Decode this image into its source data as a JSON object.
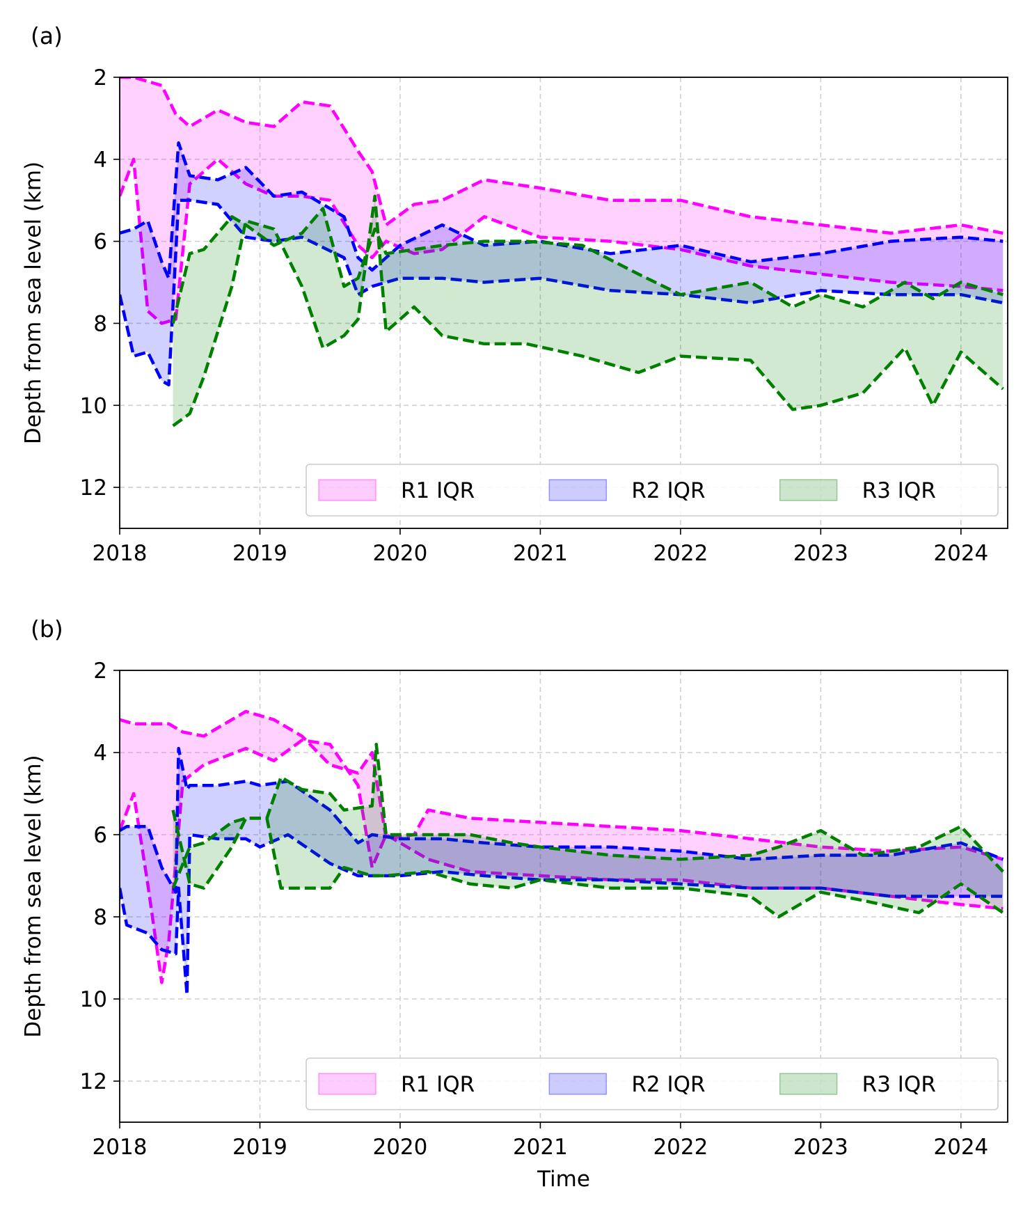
{
  "chart_data": [
    {
      "panel_label": "(a)",
      "type": "area",
      "ylabel": "Depth from sea level (km)",
      "xlabel": "",
      "x_ticks": [
        "2018",
        "2019",
        "2020",
        "2021",
        "2022",
        "2023",
        "2024"
      ],
      "y_ticks": [
        "2",
        "4",
        "6",
        "8",
        "10",
        "12"
      ],
      "xlim": [
        "2018-01-01",
        "2024-05-01"
      ],
      "ylim": [
        13,
        2
      ],
      "y_inverted": true,
      "grid": true,
      "legend_position": "lower right",
      "legend": [
        "R1 IQR",
        "R2 IQR",
        "R3 IQR"
      ],
      "series": [
        {
          "name": "R1 IQR",
          "color": "#ff00ff",
          "t": [
            2018.0,
            2018.1,
            2018.2,
            2018.3,
            2018.4,
            2018.5,
            2018.7,
            2018.9,
            2019.1,
            2019.3,
            2019.5,
            2019.7,
            2019.8,
            2019.9,
            2020.1,
            2020.3,
            2020.6,
            2021.0,
            2021.5,
            2022.0,
            2022.5,
            2023.0,
            2023.5,
            2024.0,
            2024.3
          ],
          "q1": [
            2.0,
            2.0,
            2.1,
            2.2,
            2.9,
            3.2,
            2.8,
            3.1,
            3.2,
            2.6,
            2.7,
            3.8,
            4.3,
            5.6,
            5.1,
            5.0,
            4.5,
            4.7,
            5.0,
            5.0,
            5.4,
            5.6,
            5.8,
            5.6,
            5.8
          ],
          "q3": [
            4.9,
            4.0,
            7.7,
            8.0,
            7.9,
            4.6,
            4.0,
            4.6,
            4.9,
            4.9,
            5.0,
            6.1,
            6.4,
            6.0,
            6.3,
            6.2,
            5.4,
            5.9,
            6.0,
            6.2,
            6.6,
            6.8,
            7.0,
            7.1,
            7.2
          ]
        },
        {
          "name": "R2 IQR",
          "color": "#0000ff",
          "t": [
            2018.0,
            2018.1,
            2018.2,
            2018.3,
            2018.35,
            2018.42,
            2018.5,
            2018.7,
            2018.9,
            2019.1,
            2019.3,
            2019.6,
            2019.7,
            2019.8,
            2020.0,
            2020.3,
            2020.6,
            2021.0,
            2021.5,
            2022.0,
            2022.5,
            2023.0,
            2023.5,
            2024.0,
            2024.3
          ],
          "q1": [
            5.8,
            5.7,
            5.5,
            6.5,
            6.9,
            3.6,
            4.4,
            4.5,
            4.2,
            4.9,
            4.8,
            5.4,
            6.4,
            6.7,
            6.1,
            5.6,
            6.1,
            6.0,
            6.3,
            6.1,
            6.5,
            6.3,
            6.0,
            5.9,
            6.0
          ],
          "q3": [
            7.3,
            8.8,
            8.7,
            9.4,
            9.5,
            5.0,
            5.0,
            5.1,
            5.9,
            6.0,
            5.9,
            6.4,
            7.3,
            7.1,
            6.9,
            6.9,
            7.0,
            6.9,
            7.2,
            7.3,
            7.5,
            7.2,
            7.3,
            7.3,
            7.5
          ]
        },
        {
          "name": "R3 IQR",
          "color": "#007f00",
          "t": [
            2018.38,
            2018.5,
            2018.6,
            2018.8,
            2018.9,
            2019.1,
            2019.3,
            2019.45,
            2019.6,
            2019.7,
            2019.82,
            2019.9,
            2020.1,
            2020.3,
            2020.6,
            2020.9,
            2021.3,
            2021.7,
            2022.0,
            2022.5,
            2022.8,
            2023.0,
            2023.3,
            2023.6,
            2023.8,
            2024.0,
            2024.3
          ],
          "q1": [
            8.0,
            6.3,
            6.2,
            5.4,
            5.6,
            6.1,
            5.8,
            5.2,
            7.1,
            6.9,
            5.7,
            6.3,
            6.2,
            6.1,
            6.0,
            6.0,
            6.1,
            6.8,
            7.3,
            7.0,
            7.6,
            7.3,
            7.6,
            7.0,
            7.4,
            7.0,
            7.3
          ],
          "q3": [
            10.5,
            10.2,
            9.3,
            7.1,
            5.5,
            5.7,
            7.1,
            8.6,
            8.3,
            7.9,
            4.9,
            8.2,
            7.6,
            8.3,
            8.5,
            8.5,
            8.8,
            9.2,
            8.8,
            8.9,
            10.1,
            10.0,
            9.7,
            8.6,
            10.0,
            8.7,
            9.6
          ]
        }
      ]
    },
    {
      "panel_label": "(b)",
      "type": "area",
      "ylabel": "Depth from sea level (km)",
      "xlabel": "Time",
      "x_ticks": [
        "2018",
        "2019",
        "2020",
        "2021",
        "2022",
        "2023",
        "2024"
      ],
      "y_ticks": [
        "2",
        "4",
        "6",
        "8",
        "10",
        "12"
      ],
      "xlim": [
        "2018-01-01",
        "2024-05-01"
      ],
      "ylim": [
        13,
        2
      ],
      "y_inverted": true,
      "grid": true,
      "legend_position": "lower right",
      "legend": [
        "R1 IQR",
        "R2 IQR",
        "R3 IQR"
      ],
      "series": [
        {
          "name": "R1 IQR",
          "color": "#ff00ff",
          "t": [
            2018.0,
            2018.1,
            2018.2,
            2018.3,
            2018.35,
            2018.45,
            2018.6,
            2018.9,
            2019.1,
            2019.3,
            2019.5,
            2019.7,
            2019.8,
            2019.9,
            2020.1,
            2020.2,
            2020.5,
            2021.0,
            2021.5,
            2022.0,
            2022.5,
            2023.0,
            2023.5,
            2024.0,
            2024.3
          ],
          "q1": [
            3.2,
            3.3,
            3.3,
            3.3,
            3.3,
            3.5,
            3.6,
            3.0,
            3.2,
            3.6,
            4.3,
            4.5,
            4.0,
            6.1,
            6.0,
            5.4,
            5.6,
            5.7,
            5.8,
            5.9,
            6.1,
            6.3,
            6.4,
            6.3,
            6.6
          ],
          "q3": [
            5.9,
            5.0,
            7.2,
            9.6,
            8.6,
            4.7,
            4.3,
            3.9,
            4.2,
            3.7,
            3.8,
            4.8,
            6.8,
            6.0,
            6.4,
            6.6,
            6.9,
            7.0,
            7.1,
            7.1,
            7.3,
            7.3,
            7.5,
            7.7,
            7.8
          ]
        },
        {
          "name": "R2 IQR",
          "color": "#0000ff",
          "t": [
            2018.0,
            2018.05,
            2018.2,
            2018.3,
            2018.4,
            2018.42,
            2018.48,
            2018.5,
            2018.7,
            2018.9,
            2019.0,
            2019.2,
            2019.5,
            2019.7,
            2019.8,
            2020.0,
            2020.3,
            2020.6,
            2021.0,
            2021.5,
            2022.0,
            2022.5,
            2023.0,
            2023.5,
            2024.0,
            2024.3
          ],
          "q1": [
            5.9,
            5.8,
            5.8,
            6.8,
            7.4,
            3.9,
            4.9,
            4.8,
            4.8,
            4.7,
            4.8,
            4.7,
            5.4,
            6.2,
            6.0,
            6.1,
            6.1,
            6.2,
            6.3,
            6.3,
            6.4,
            6.6,
            6.5,
            6.5,
            6.2,
            6.6
          ],
          "q3": [
            7.3,
            8.2,
            8.4,
            8.8,
            8.9,
            7.3,
            9.9,
            6.0,
            6.1,
            6.1,
            6.3,
            6.0,
            6.7,
            7.0,
            7.0,
            7.0,
            6.9,
            7.0,
            7.1,
            7.1,
            7.2,
            7.3,
            7.3,
            7.5,
            7.5,
            7.5
          ]
        },
        {
          "name": "R3 IQR",
          "color": "#007f00",
          "t": [
            2018.38,
            2018.5,
            2018.6,
            2018.8,
            2018.9,
            2019.05,
            2019.15,
            2019.3,
            2019.5,
            2019.6,
            2019.8,
            2019.83,
            2019.9,
            2020.2,
            2020.5,
            2020.8,
            2021.0,
            2021.5,
            2022.0,
            2022.5,
            2022.7,
            2023.0,
            2023.3,
            2023.7,
            2024.0,
            2024.3
          ],
          "q1": [
            7.3,
            6.3,
            6.2,
            5.7,
            5.6,
            5.6,
            4.6,
            4.9,
            5.0,
            5.4,
            5.3,
            3.8,
            6.0,
            6.0,
            6.0,
            6.2,
            6.3,
            6.5,
            6.6,
            6.5,
            6.3,
            5.9,
            6.5,
            6.3,
            5.8,
            6.9
          ],
          "q3": [
            5.4,
            7.2,
            7.3,
            6.3,
            5.6,
            5.6,
            7.3,
            7.3,
            7.3,
            6.8,
            7.0,
            7.0,
            7.0,
            6.9,
            7.2,
            7.3,
            7.1,
            7.3,
            7.3,
            7.5,
            8.0,
            7.4,
            7.6,
            7.9,
            7.2,
            7.9
          ]
        }
      ]
    }
  ]
}
